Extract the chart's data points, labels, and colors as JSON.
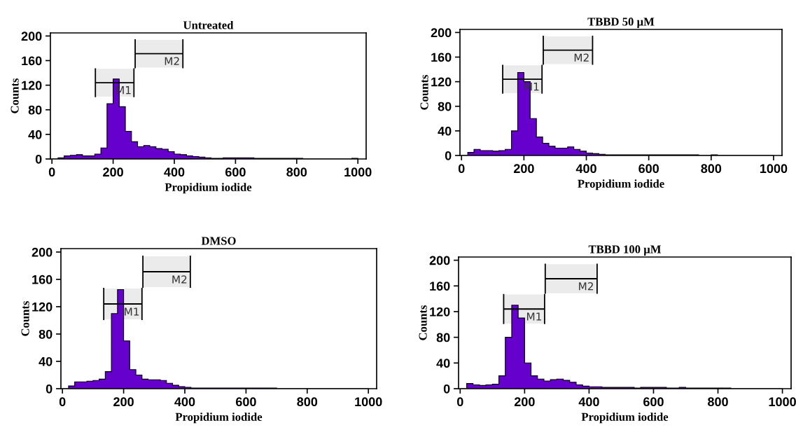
{
  "chart_data": [
    {
      "type": "histogram",
      "title": "Untreated",
      "xlabel": "Propidium iodide",
      "ylabel": "Counts",
      "color": "#6600cc",
      "xlim": [
        -5,
        1027
      ],
      "ylim": [
        0,
        205
      ],
      "xticks": [
        0,
        200,
        400,
        600,
        800,
        1000
      ],
      "yticks": [
        0,
        40,
        80,
        120,
        160,
        200
      ],
      "bins": [
        0,
        20,
        40,
        60,
        80,
        100,
        120,
        140,
        160,
        180,
        200,
        220,
        240,
        260,
        280,
        300,
        320,
        340,
        360,
        380,
        400,
        420,
        440,
        460,
        480,
        500,
        520,
        540,
        560,
        580,
        600,
        620,
        640,
        660,
        680,
        700,
        720,
        740,
        760,
        780,
        800,
        820,
        840,
        860,
        880,
        900,
        920,
        940,
        960,
        980,
        1000
      ],
      "values": [
        0,
        2,
        5,
        6,
        7,
        5,
        5,
        8,
        18,
        90,
        130,
        85,
        45,
        28,
        20,
        22,
        20,
        17,
        16,
        12,
        8,
        7,
        5,
        4,
        3,
        2,
        1,
        1,
        2,
        2,
        2,
        2,
        2,
        1,
        1,
        1,
        1,
        1,
        1,
        1,
        1,
        0,
        0,
        0,
        0,
        0,
        0,
        0,
        0,
        1
      ],
      "bands": [
        {
          "axis": "x",
          "from": 142,
          "to": 268,
          "label": "M1"
        },
        {
          "axis": "x",
          "from": 272,
          "to": 428,
          "label": "M2"
        }
      ]
    },
    {
      "type": "histogram",
      "title": "TBBD 50 µM",
      "xlabel": "Propidium iodide",
      "ylabel": "Counts",
      "color": "#6600cc",
      "xlim": [
        -5,
        1027
      ],
      "ylim": [
        0,
        205
      ],
      "xticks": [
        0,
        200,
        400,
        600,
        800,
        1000
      ],
      "yticks": [
        0,
        40,
        80,
        120,
        160,
        200
      ],
      "bins": [
        0,
        20,
        40,
        60,
        80,
        100,
        120,
        140,
        160,
        180,
        200,
        220,
        240,
        260,
        280,
        300,
        320,
        340,
        360,
        380,
        400,
        420,
        440,
        460,
        480,
        500,
        520,
        540,
        560,
        580,
        600,
        620,
        640,
        660,
        680,
        700,
        720,
        740,
        760,
        780,
        800,
        820,
        840,
        860,
        880,
        900,
        920,
        940,
        960,
        980,
        1000
      ],
      "values": [
        0,
        5,
        10,
        8,
        8,
        7,
        8,
        10,
        40,
        135,
        120,
        60,
        30,
        20,
        15,
        12,
        12,
        14,
        10,
        7,
        4,
        3,
        2,
        1,
        1,
        1,
        1,
        1,
        1,
        1,
        1,
        1,
        1,
        1,
        1,
        1,
        1,
        1,
        0,
        0,
        1,
        0,
        0,
        0,
        0,
        0,
        0,
        0,
        0,
        0
      ],
      "bands": [
        {
          "axis": "x",
          "from": 132,
          "to": 258,
          "label": "M1"
        },
        {
          "axis": "x",
          "from": 262,
          "to": 420,
          "label": "M2"
        }
      ]
    },
    {
      "type": "histogram",
      "title": "DMSO",
      "xlabel": "Propidium iodide",
      "ylabel": "Counts",
      "color": "#6600cc",
      "xlim": [
        -5,
        1027
      ],
      "ylim": [
        0,
        205
      ],
      "xticks": [
        0,
        200,
        400,
        600,
        800,
        1000
      ],
      "yticks": [
        0,
        40,
        80,
        120,
        160,
        200
      ],
      "bins": [
        0,
        20,
        40,
        60,
        80,
        100,
        120,
        140,
        160,
        180,
        200,
        220,
        240,
        260,
        280,
        300,
        320,
        340,
        360,
        380,
        400,
        420,
        440,
        460,
        480,
        500,
        520,
        540,
        560,
        580,
        600,
        620,
        640,
        660,
        680,
        700,
        720,
        740,
        760,
        780,
        800,
        820,
        840,
        860,
        880,
        900,
        920,
        940,
        960,
        980,
        1000
      ],
      "values": [
        0,
        4,
        10,
        10,
        11,
        12,
        14,
        25,
        110,
        145,
        70,
        28,
        20,
        14,
        13,
        13,
        12,
        8,
        5,
        3,
        2,
        1,
        1,
        1,
        1,
        1,
        1,
        1,
        1,
        1,
        1,
        1,
        1,
        1,
        1,
        0,
        0,
        0,
        0,
        0,
        0,
        0,
        0,
        0,
        0,
        0,
        0,
        0,
        0,
        0
      ],
      "bands": [
        {
          "axis": "x",
          "from": 135,
          "to": 260,
          "label": "M1"
        },
        {
          "axis": "x",
          "from": 263,
          "to": 418,
          "label": "M2"
        }
      ]
    },
    {
      "type": "histogram",
      "title": "TBBD 100 µM",
      "xlabel": "Propidium iodide",
      "ylabel": "Counts",
      "color": "#6600cc",
      "xlim": [
        -5,
        1027
      ],
      "ylim": [
        0,
        205
      ],
      "xticks": [
        0,
        200,
        400,
        600,
        800,
        1000
      ],
      "yticks": [
        0,
        40,
        80,
        120,
        160,
        200
      ],
      "bins": [
        0,
        20,
        40,
        60,
        80,
        100,
        120,
        140,
        160,
        180,
        200,
        220,
        240,
        260,
        280,
        300,
        320,
        340,
        360,
        380,
        400,
        420,
        440,
        460,
        480,
        500,
        520,
        540,
        560,
        580,
        600,
        620,
        640,
        660,
        680,
        700,
        720,
        740,
        760,
        780,
        800,
        820,
        840,
        860,
        880,
        900,
        920,
        940,
        960,
        980,
        1000
      ],
      "values": [
        0,
        8,
        6,
        5,
        6,
        7,
        20,
        80,
        130,
        110,
        40,
        20,
        15,
        12,
        14,
        15,
        13,
        10,
        6,
        4,
        3,
        3,
        2,
        2,
        2,
        2,
        2,
        1,
        2,
        2,
        2,
        2,
        1,
        1,
        2,
        1,
        1,
        1,
        1,
        1,
        1,
        1,
        0,
        0,
        0,
        0,
        0,
        0,
        0,
        0
      ],
      "bands": [
        {
          "axis": "x",
          "from": 135,
          "to": 262,
          "label": "M1"
        },
        {
          "axis": "x",
          "from": 264,
          "to": 425,
          "label": "M2"
        }
      ]
    }
  ]
}
